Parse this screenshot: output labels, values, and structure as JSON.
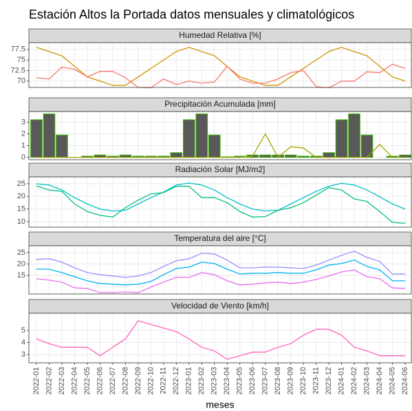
{
  "title": "Estación Altos la Portada datos mensuales y climatológicos",
  "chart_data": [
    {
      "type": "line",
      "title": "Humedad Relativa [%]",
      "ylim": [
        68.5,
        79.1
      ],
      "yticks": [
        70,
        72.5,
        75,
        77.5
      ],
      "grid": true,
      "series": [
        {
          "color": "#D39200",
          "values": [
            78,
            77,
            76,
            73.5,
            71,
            70,
            69,
            69,
            71,
            73,
            75,
            77,
            78,
            77,
            76,
            73.5,
            71,
            70,
            69,
            69,
            71,
            73,
            75,
            77,
            78,
            77,
            76,
            73.5,
            71,
            70
          ]
        },
        {
          "color": "#F8766D",
          "values": [
            70.8,
            70.5,
            73.3,
            72.8,
            71,
            72.3,
            72.3,
            70.8,
            68.5,
            68.4,
            70.5,
            69.2,
            70,
            69.5,
            69.8,
            73.5,
            70.5,
            69.5,
            69.5,
            70.5,
            72,
            72.5,
            68.7,
            68.4,
            70,
            70,
            72.2,
            72,
            74,
            73
          ]
        }
      ]
    },
    {
      "type": "bar",
      "title": "Precipitación Acumulada [mm]",
      "ylim": [
        -0.2,
        3.9
      ],
      "yticks": [
        0,
        1,
        2,
        3
      ],
      "grid": true,
      "series": [
        {
          "type": "bar",
          "fill": "#595959",
          "color": "#39B600",
          "values": [
            3.2,
            3.7,
            1.9,
            0,
            0.1,
            0.2,
            0.1,
            0.2,
            0.1,
            0.1,
            0.1,
            0.4,
            3.2,
            3.7,
            1.9,
            0.05,
            0.1,
            0.2,
            0.2,
            0.2,
            0.2,
            0.1,
            0.1,
            0.4,
            3.2,
            3.7,
            1.9,
            0,
            0.1,
            0.2
          ]
        },
        {
          "type": "line",
          "color": "#A3A500",
          "values": [
            0,
            0,
            0,
            0,
            0,
            0,
            0,
            0,
            0,
            0,
            0,
            0,
            0,
            0,
            0,
            0,
            0,
            0.1,
            2.0,
            0,
            0.9,
            0.8,
            0,
            0,
            0,
            0,
            0,
            1.1,
            0,
            0
          ]
        }
      ]
    },
    {
      "type": "line",
      "title": "Radiación Solar [MJ/m2]",
      "ylim": [
        7.8,
        27.7
      ],
      "yticks": [
        10,
        15,
        20,
        25
      ],
      "grid": true,
      "series": [
        {
          "color": "#00BFC4",
          "values": [
            25,
            24.5,
            22.5,
            19.5,
            17,
            15,
            14.2,
            14.5,
            17,
            19.5,
            21.7,
            24.5,
            25.3,
            24.5,
            22.5,
            19.5,
            17,
            15,
            14.2,
            14.5,
            17,
            19.5,
            22,
            24,
            25.2,
            24.5,
            22.5,
            19.8,
            17,
            15
          ]
        },
        {
          "color": "#00BF7D",
          "values": [
            24.2,
            22.5,
            22,
            17,
            14,
            12.5,
            11.8,
            15.5,
            18.5,
            21,
            21.5,
            24,
            24,
            19.5,
            19.5,
            17.5,
            14,
            11.8,
            12,
            14.5,
            15.5,
            17.5,
            20.5,
            23.5,
            22.5,
            19,
            18,
            14,
            9.7,
            9.3
          ]
        }
      ]
    },
    {
      "type": "line",
      "title": "Temperatura del aire [°C]",
      "ylim": [
        6.8,
        28
      ],
      "yticks": [
        15,
        20,
        25
      ],
      "grid": true,
      "series": [
        {
          "color": "#9590FF",
          "values": [
            22.0,
            22.3,
            20.8,
            18.3,
            16.2,
            15.3,
            14.7,
            14.1,
            14.7,
            16.2,
            18.9,
            21.4,
            22.3,
            24.7,
            24.4,
            21.7,
            18.3,
            18.3,
            18.6,
            18.6,
            18.3,
            18.0,
            19.5,
            21.7,
            23.8,
            25.6,
            22.9,
            21.1,
            15.6,
            15.6
          ]
        },
        {
          "color": "#00B0F6",
          "values": [
            17.7,
            17.7,
            16.2,
            14.4,
            12.6,
            11.4,
            11.1,
            10.8,
            11.1,
            12.3,
            15.3,
            18.0,
            18.6,
            20.8,
            20.2,
            17.7,
            15.6,
            15.9,
            15.9,
            16.2,
            15.9,
            15.9,
            17.4,
            19.5,
            20.2,
            21.7,
            18.9,
            17.4,
            12.6,
            12.6
          ]
        },
        {
          "color": "#E76BF3",
          "values": [
            13.5,
            12.9,
            12.0,
            9.5,
            9.2,
            7.4,
            7.4,
            7.7,
            7.4,
            9.8,
            12.0,
            14.1,
            14.1,
            16.2,
            15.3,
            12.6,
            10.8,
            11.1,
            11.7,
            12.0,
            11.4,
            12.0,
            13.2,
            14.7,
            16.5,
            17.4,
            14.4,
            13.5,
            9.5,
            9.2
          ]
        }
      ]
    },
    {
      "type": "line",
      "title": "Velocidad de Viento [km/h]",
      "ylim": [
        2.31,
        6.43
      ],
      "yticks": [
        3,
        4,
        5
      ],
      "grid": true,
      "x_label": "meses",
      "categories": [
        "2022-01",
        "2022-02",
        "2022-03",
        "2022-04",
        "2022-05",
        "2022-06",
        "2022-07",
        "2022-08",
        "2022-09",
        "2022-10",
        "2022-11",
        "2022-12",
        "2023-01",
        "2023-02",
        "2023-03",
        "2023-04",
        "2023-05",
        "2023-06",
        "2023-07",
        "2023-08",
        "2023-09",
        "2023-10",
        "2023-11",
        "2023-12",
        "2024-01",
        "2024-02",
        "2024-03",
        "2024-04",
        "2024-05",
        "2024-06"
      ],
      "series": [
        {
          "color": "#FF62BC",
          "values": [
            4.3,
            3.9,
            3.6,
            3.6,
            3.6,
            2.9,
            3.6,
            4.3,
            5.8,
            5.5,
            5.2,
            4.9,
            4.3,
            3.6,
            3.3,
            2.6,
            2.9,
            3.2,
            3.2,
            3.6,
            3.9,
            4.6,
            5.1,
            5.1,
            4.6,
            3.6,
            3.3,
            2.9,
            2.9,
            2.9
          ]
        }
      ]
    }
  ]
}
